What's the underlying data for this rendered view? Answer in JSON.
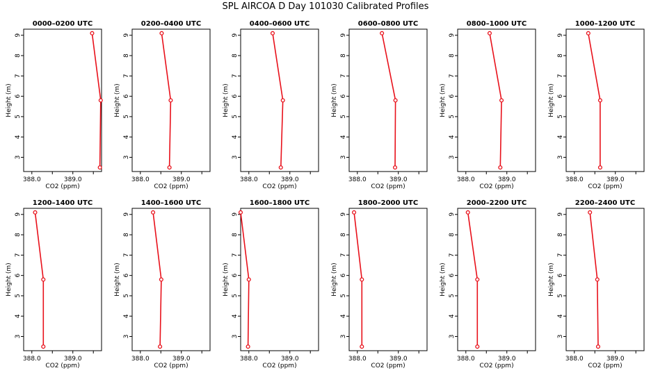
{
  "title": "SPL AIRCOA D  Day 101030  Calibrated Profiles",
  "chart_data": {
    "type": "line",
    "xlabel": "CO2 (ppm)",
    "ylabel": "Height (m)",
    "xlim": [
      387.8,
      389.7
    ],
    "ylim": [
      2.3,
      9.3
    ],
    "xticks": [
      388.0,
      388.5,
      389.0,
      389.5
    ],
    "xtick_labels": [
      "388.0",
      "",
      "389.0",
      ""
    ],
    "yticks": [
      3,
      4,
      5,
      6,
      7,
      8,
      9
    ],
    "grid": false,
    "line_color": "#e8101a",
    "panels": [
      {
        "title": "0000–0200 UTC",
        "heights": [
          9.1,
          5.8,
          2.5
        ],
        "co2": [
          389.47,
          389.68,
          389.66
        ]
      },
      {
        "title": "0200–0400 UTC",
        "heights": [
          9.1,
          5.8,
          2.5
        ],
        "co2": [
          388.52,
          388.74,
          388.71
        ]
      },
      {
        "title": "0400–0600 UTC",
        "heights": [
          9.1,
          5.8,
          2.5
        ],
        "co2": [
          388.58,
          388.83,
          388.78
        ]
      },
      {
        "title": "0600–0800 UTC",
        "heights": [
          9.1,
          5.8,
          2.5
        ],
        "co2": [
          388.6,
          388.93,
          388.92
        ]
      },
      {
        "title": "0800–1000 UTC",
        "heights": [
          9.1,
          5.8,
          2.5
        ],
        "co2": [
          388.58,
          388.87,
          388.84
        ]
      },
      {
        "title": "1000–1200 UTC",
        "heights": [
          9.1,
          5.8,
          2.5
        ],
        "co2": [
          388.34,
          388.63,
          388.63
        ]
      },
      {
        "title": "1200–1400 UTC",
        "heights": [
          9.1,
          5.8,
          2.5
        ],
        "co2": [
          388.08,
          388.28,
          388.28
        ]
      },
      {
        "title": "1400–1600 UTC",
        "heights": [
          9.1,
          5.8,
          2.5
        ],
        "co2": [
          388.31,
          388.51,
          388.48
        ]
      },
      {
        "title": "1600–1800 UTC",
        "heights": [
          9.1,
          5.8,
          2.5
        ],
        "co2": [
          387.8,
          388.0,
          387.98
        ]
      },
      {
        "title": "1800–2000 UTC",
        "heights": [
          9.1,
          5.8,
          2.5
        ],
        "co2": [
          387.92,
          388.11,
          388.11
        ]
      },
      {
        "title": "2000–2200 UTC",
        "heights": [
          9.1,
          5.8,
          2.5
        ],
        "co2": [
          388.05,
          388.28,
          388.28
        ]
      },
      {
        "title": "2200–2400 UTC",
        "heights": [
          9.1,
          5.8,
          2.5
        ],
        "co2": [
          388.38,
          388.56,
          388.58
        ]
      }
    ]
  }
}
